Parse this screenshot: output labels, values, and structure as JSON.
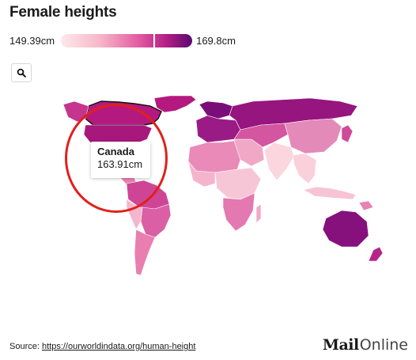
{
  "title": "Female heights",
  "legend": {
    "min_label": "149.39cm",
    "max_label": "169.8cm",
    "min_value": 149.39,
    "max_value": 169.8,
    "selected_value": 163.91,
    "colors": [
      "#fde8ec",
      "#f7b6c8",
      "#e05aa0",
      "#b51f86",
      "#5a0a6e"
    ]
  },
  "controls": {
    "zoom_icon": "magnifier-icon"
  },
  "tooltip": {
    "country": "Canada",
    "value": "163.91cm"
  },
  "highlight_color": "#e0201b",
  "footer": {
    "source_prefix": "Source: ",
    "source_link": "https://ourworldindata.org/human-height"
  },
  "brand": {
    "bold": "Mail",
    "light": "Online"
  }
}
